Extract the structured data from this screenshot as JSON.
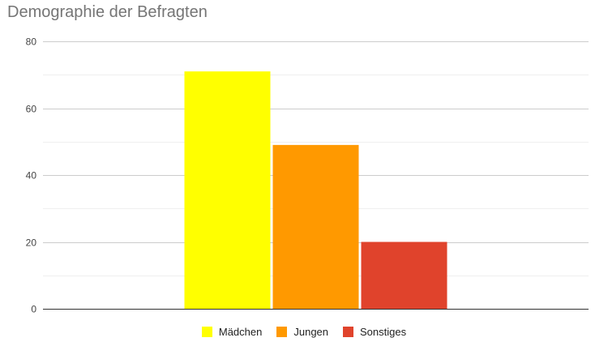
{
  "chart_data": {
    "type": "bar",
    "title": "Demographie der Befragten",
    "categories": [
      ""
    ],
    "series": [
      {
        "name": "Mädchen",
        "values": [
          71
        ],
        "color": "#ffff00"
      },
      {
        "name": "Jungen",
        "values": [
          49
        ],
        "color": "#ff9900"
      },
      {
        "name": "Sonstiges",
        "values": [
          20
        ],
        "color": "#e0432c"
      }
    ],
    "xlabel": "",
    "ylabel": "",
    "ylim": [
      0,
      80
    ],
    "yticks": [
      0,
      20,
      40,
      60,
      80
    ],
    "minor_gridlines": true,
    "grid": true,
    "legend_position": "bottom"
  }
}
